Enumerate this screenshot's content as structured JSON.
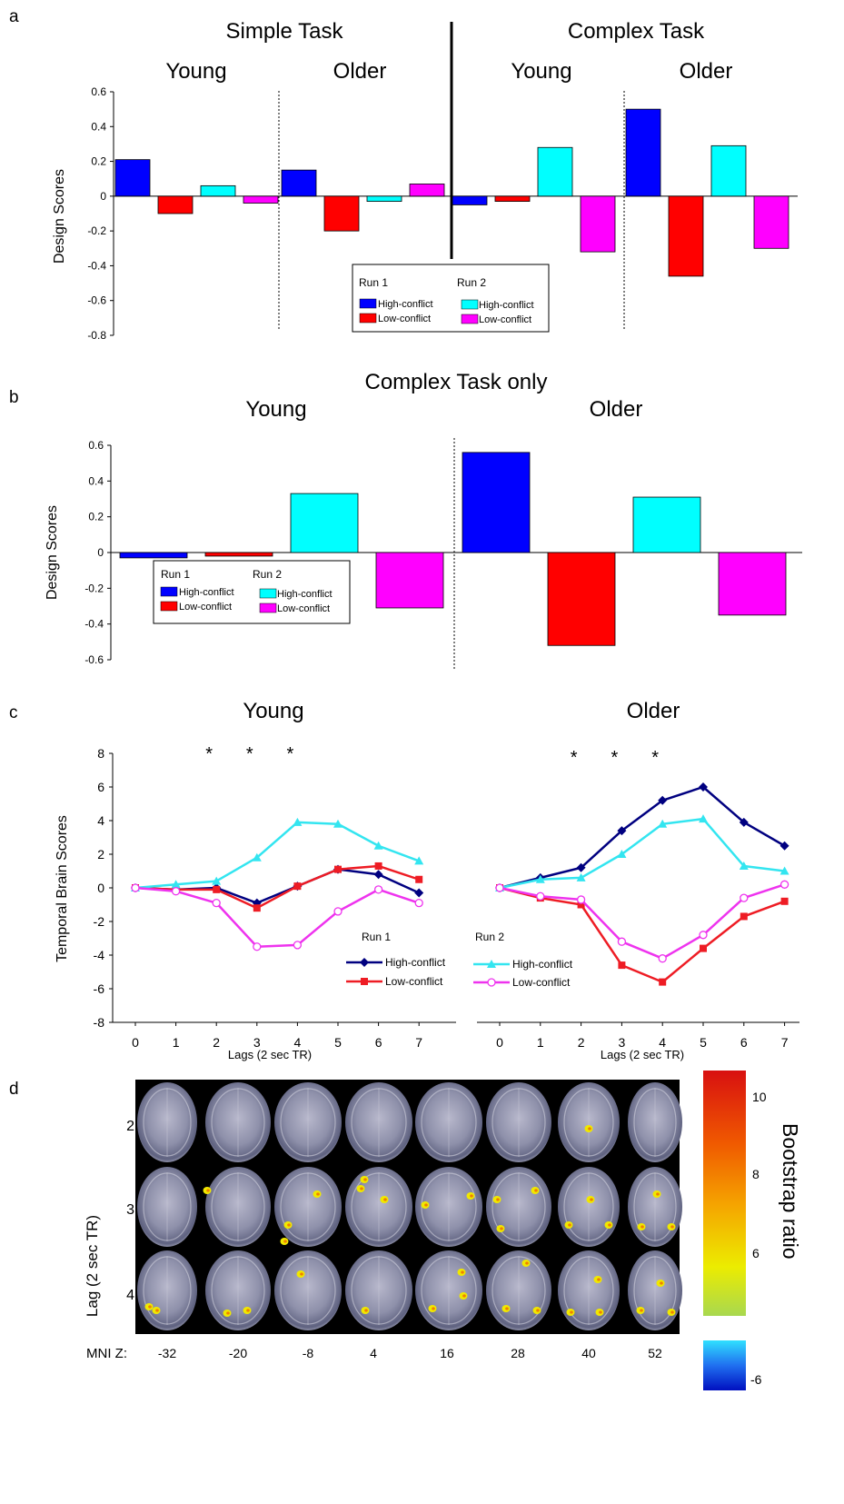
{
  "panel_labels": {
    "a": "a",
    "b": "b",
    "c": "c",
    "d": "d"
  },
  "legend": {
    "run1": "Run 1",
    "run2": "Run 2",
    "high": "High-conflict",
    "low": "Low-conflict"
  },
  "colors": {
    "run1_high": "#0000ff",
    "run1_low": "#ff0000",
    "run2_high": "#00ffff",
    "run2_low": "#ff00ff",
    "line_run1_high": "#000080",
    "line_run1_low": "#ee1c24",
    "line_run2_high": "#33e5f0",
    "line_run2_low": "#ee33ee"
  },
  "chart_data": [
    {
      "panel": "a",
      "type": "bar",
      "ylabel": "Design Scores",
      "ylim": [
        -0.8,
        0.6
      ],
      "yticks": [
        "0.6",
        "0.4",
        "0.2",
        "0",
        "-0.2",
        "-0.4",
        "-0.6",
        "-0.8"
      ],
      "task_titles": [
        "Simple Task",
        "Complex Task"
      ],
      "group_labels": [
        "Young",
        "Older",
        "Young",
        "Older"
      ],
      "series_order": [
        "Run 1 High-conflict",
        "Run 1 Low-conflict",
        "Run 2 High-conflict",
        "Run 2 Low-conflict"
      ],
      "groups": [
        {
          "task": "Simple Task",
          "group": "Young",
          "values": [
            0.21,
            -0.1,
            0.06,
            -0.04
          ]
        },
        {
          "task": "Simple Task",
          "group": "Older",
          "values": [
            0.15,
            -0.2,
            -0.03,
            0.07
          ]
        },
        {
          "task": "Complex Task",
          "group": "Young",
          "values": [
            -0.05,
            -0.03,
            0.28,
            -0.32
          ]
        },
        {
          "task": "Complex Task",
          "group": "Older",
          "values": [
            0.5,
            -0.46,
            0.29,
            -0.3
          ]
        }
      ],
      "legend_position": "bottom-center"
    },
    {
      "panel": "b",
      "type": "bar",
      "title": "Complex Task only",
      "ylabel": "Design Scores",
      "ylim": [
        -0.6,
        0.6
      ],
      "yticks": [
        "0.6",
        "0.4",
        "0.2",
        "0",
        "-0.2",
        "-0.4",
        "-0.6"
      ],
      "group_labels": [
        "Young",
        "Older"
      ],
      "series_order": [
        "Run 1 High-conflict",
        "Run 1 Low-conflict",
        "Run 2 High-conflict",
        "Run 2 Low-conflict"
      ],
      "groups": [
        {
          "group": "Young",
          "values": [
            -0.03,
            -0.02,
            0.33,
            -0.31
          ]
        },
        {
          "group": "Older",
          "values": [
            0.56,
            -0.52,
            0.31,
            -0.35
          ]
        }
      ],
      "legend_position": "bottom-left"
    },
    {
      "panel": "c",
      "type": "line",
      "ylabel": "Temporal Brain Scores",
      "xlabel": "Lags (2 sec TR)",
      "x": [
        0,
        1,
        2,
        3,
        4,
        5,
        6,
        7
      ],
      "ylim": [
        -8,
        8
      ],
      "yticks": [
        "8",
        "6",
        "4",
        "2",
        "0",
        "-2",
        "-4",
        "-6",
        "-8"
      ],
      "star_label": "*",
      "star_lags": [
        2,
        3,
        4
      ],
      "subplots": [
        {
          "title": "Young",
          "series": [
            {
              "name": "Run 1 High-conflict",
              "values": [
                0,
                -0.1,
                0,
                -0.9,
                0.1,
                1.1,
                0.8,
                -0.3
              ]
            },
            {
              "name": "Run 1 Low-conflict",
              "values": [
                0,
                -0.1,
                -0.1,
                -1.2,
                0.1,
                1.1,
                1.3,
                0.5
              ]
            },
            {
              "name": "Run 2 High-conflict",
              "values": [
                0,
                0.2,
                0.4,
                1.8,
                3.9,
                3.8,
                2.5,
                1.6
              ]
            },
            {
              "name": "Run 2 Low-conflict",
              "values": [
                0,
                -0.2,
                -0.9,
                -3.5,
                -3.4,
                -1.4,
                -0.1,
                -0.9
              ]
            }
          ]
        },
        {
          "title": "Older",
          "series": [
            {
              "name": "Run 1 High-conflict",
              "values": [
                0,
                0.6,
                1.2,
                3.4,
                5.2,
                6.0,
                3.9,
                2.5
              ]
            },
            {
              "name": "Run 1 Low-conflict",
              "values": [
                0,
                -0.6,
                -1.0,
                -4.6,
                -5.6,
                -3.6,
                -1.7,
                -0.8
              ]
            },
            {
              "name": "Run 2 High-conflict",
              "values": [
                0,
                0.5,
                0.6,
                2.0,
                3.8,
                4.1,
                1.3,
                1.0
              ]
            },
            {
              "name": "Run 2 Low-conflict",
              "values": [
                0,
                -0.5,
                -0.7,
                -3.2,
                -4.2,
                -2.8,
                -0.6,
                0.2
              ]
            }
          ]
        }
      ]
    }
  ],
  "brain_panel": {
    "ylabel": "Lag (2 sec TR)",
    "row_labels": [
      "2",
      "3",
      "4"
    ],
    "mni_label": "MNI Z:",
    "mni_values": [
      "-32",
      "-20",
      "-8",
      "4",
      "16",
      "28",
      "40",
      "52"
    ],
    "colorbar_title": "Bootstrap ratio",
    "colorbar_pos_ticks": [
      "10",
      "8",
      "6"
    ],
    "colorbar_neg_ticks": [
      "-6"
    ]
  }
}
